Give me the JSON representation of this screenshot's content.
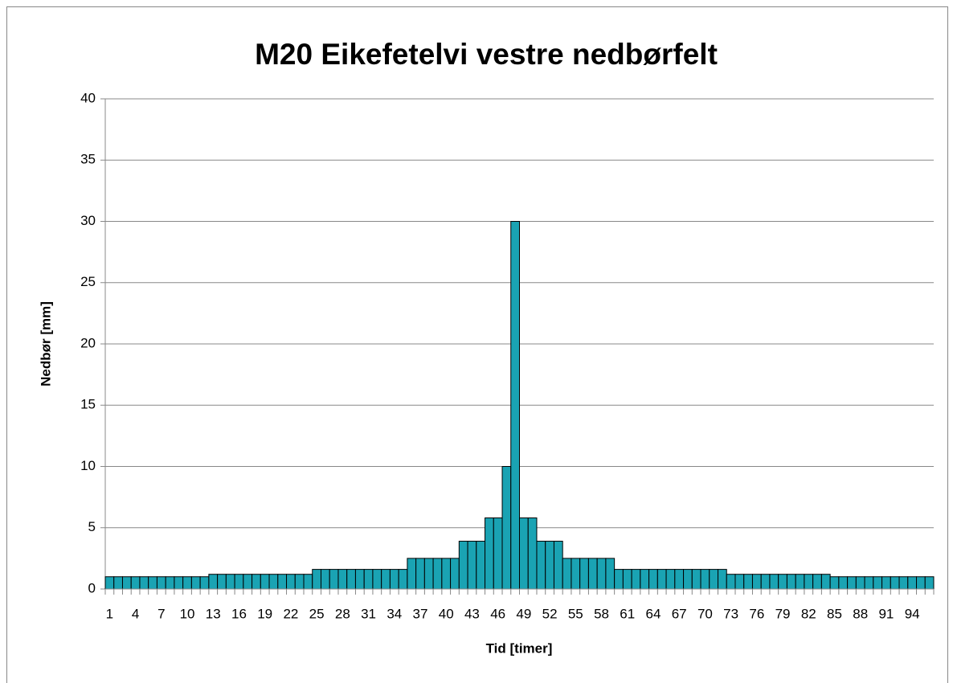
{
  "chart_data": {
    "type": "bar",
    "title": "M20 Eikefetelvi vestre nedbørfelt",
    "x_label": "Tid [timer]",
    "y_label": "Nedbør [mm]",
    "categories": [
      1,
      null,
      null,
      4,
      null,
      null,
      7,
      null,
      null,
      10,
      null,
      null,
      13,
      null,
      null,
      16,
      null,
      null,
      19,
      null,
      null,
      22,
      null,
      null,
      25,
      null,
      null,
      28,
      null,
      null,
      31,
      null,
      null,
      34,
      null,
      null,
      37,
      null,
      null,
      40,
      null,
      null,
      43,
      null,
      null,
      46,
      null,
      null,
      49,
      null,
      null,
      52,
      null,
      null,
      55,
      null,
      null,
      58,
      null,
      null,
      61,
      null,
      null,
      64,
      null,
      null,
      67,
      null,
      null,
      70,
      null,
      null,
      73,
      null,
      null,
      76,
      null,
      null,
      79,
      null,
      null,
      82,
      null,
      null,
      85,
      null,
      null,
      88,
      null,
      null,
      91,
      null,
      null,
      94,
      null,
      null
    ],
    "values": [
      1,
      1,
      1,
      1,
      1,
      1,
      1,
      1,
      1,
      1,
      1,
      1,
      1.2,
      1.2,
      1.2,
      1.2,
      1.2,
      1.2,
      1.2,
      1.2,
      1.2,
      1.2,
      1.2,
      1.2,
      1.6,
      1.6,
      1.6,
      1.6,
      1.6,
      1.6,
      1.6,
      1.6,
      1.6,
      1.6,
      1.6,
      2.5,
      2.5,
      2.5,
      2.5,
      2.5,
      2.5,
      3.9,
      3.9,
      3.9,
      5.8,
      5.8,
      10,
      30,
      5.8,
      5.8,
      3.9,
      3.9,
      3.9,
      2.5,
      2.5,
      2.5,
      2.5,
      2.5,
      2.5,
      1.6,
      1.6,
      1.6,
      1.6,
      1.6,
      1.6,
      1.6,
      1.6,
      1.6,
      1.6,
      1.6,
      1.6,
      1.6,
      1.2,
      1.2,
      1.2,
      1.2,
      1.2,
      1.2,
      1.2,
      1.2,
      1.2,
      1.2,
      1.2,
      1.2,
      1,
      1,
      1,
      1,
      1,
      1,
      1,
      1,
      1,
      1,
      1,
      1
    ],
    "color": "#1aa3b3",
    "ylim": [
      0,
      40
    ],
    "yticks": [
      0,
      5,
      10,
      15,
      20,
      25,
      30,
      35,
      40
    ],
    "grid": true
  }
}
